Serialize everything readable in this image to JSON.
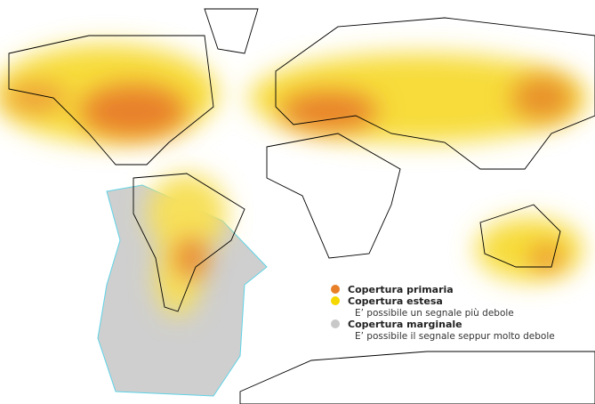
{
  "legend": {
    "items": [
      {
        "label": "Copertura primaria",
        "color": "#e8802a"
      },
      {
        "label": "Copertura estesa",
        "note": "E’ possibile un segnale più debole",
        "color": "#f5d800"
      },
      {
        "label": "Copertura marginale",
        "note": "E’ possibile il segnale seppur molto debole",
        "color": "#c8c8c8"
      }
    ]
  }
}
